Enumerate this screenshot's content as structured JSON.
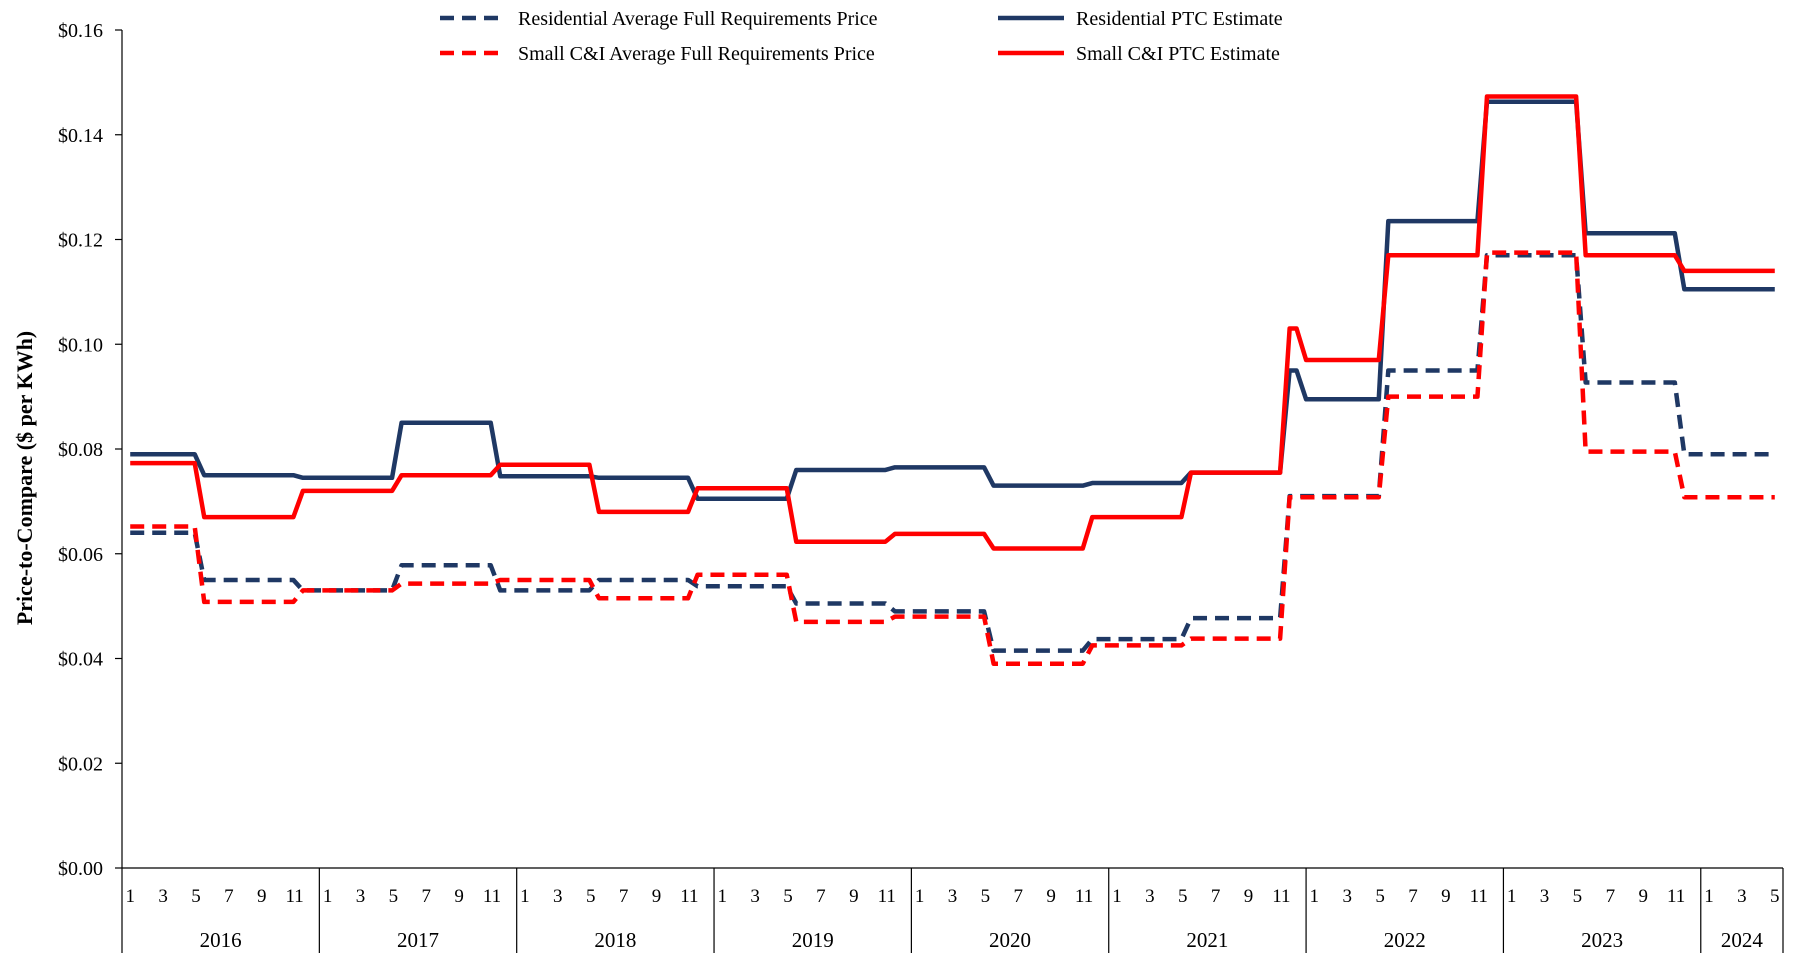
{
  "chart_data": {
    "type": "line",
    "title": "",
    "xlabel": "",
    "ylabel": "Price-to-Compare ($ per KWh)",
    "ylim": [
      0,
      0.16
    ],
    "yticks": [
      "$0.00",
      "$0.02",
      "$0.04",
      "$0.06",
      "$0.08",
      "$0.10",
      "$0.12",
      "$0.14",
      "$0.16"
    ],
    "grid": false,
    "legend_position": "top",
    "x_start": "2016-01",
    "x_end": "2024-05",
    "month_ticks": [
      "1",
      "3",
      "5",
      "7",
      "9",
      "11"
    ],
    "last_year_month_ticks": [
      "1",
      "3",
      "5"
    ],
    "years": [
      "2016",
      "2017",
      "2018",
      "2019",
      "2020",
      "2021",
      "2022",
      "2023",
      "2024"
    ],
    "series": [
      {
        "name": "Residential Average Full Requirements Price",
        "color": "#1f3864",
        "style": "dashed",
        "steps": [
          {
            "from": "2016-01",
            "to": "2016-05",
            "value": 0.064
          },
          {
            "from": "2016-06",
            "to": "2016-11",
            "value": 0.055
          },
          {
            "from": "2016-12",
            "to": "2017-05",
            "value": 0.053
          },
          {
            "from": "2017-06",
            "to": "2017-11",
            "value": 0.0578
          },
          {
            "from": "2017-12",
            "to": "2018-05",
            "value": 0.053
          },
          {
            "from": "2018-06",
            "to": "2018-11",
            "value": 0.055
          },
          {
            "from": "2018-12",
            "to": "2019-05",
            "value": 0.0538
          },
          {
            "from": "2019-06",
            "to": "2019-11",
            "value": 0.0505
          },
          {
            "from": "2019-12",
            "to": "2020-05",
            "value": 0.049
          },
          {
            "from": "2020-06",
            "to": "2020-11",
            "value": 0.0415
          },
          {
            "from": "2020-12",
            "to": "2021-05",
            "value": 0.0437
          },
          {
            "from": "2021-06",
            "to": "2021-11",
            "value": 0.0477
          },
          {
            "from": "2021-12",
            "to": "2022-05",
            "value": 0.071
          },
          {
            "from": "2022-06",
            "to": "2022-11",
            "value": 0.095
          },
          {
            "from": "2022-12",
            "to": "2023-05",
            "value": 0.117
          },
          {
            "from": "2023-06",
            "to": "2023-11",
            "value": 0.0927
          },
          {
            "from": "2023-12",
            "to": "2024-05",
            "value": 0.079
          }
        ]
      },
      {
        "name": "Residential PTC Estimate",
        "color": "#1f3864",
        "style": "solid",
        "steps": [
          {
            "from": "2016-01",
            "to": "2016-05",
            "value": 0.079
          },
          {
            "from": "2016-06",
            "to": "2016-11",
            "value": 0.075
          },
          {
            "from": "2016-12",
            "to": "2017-05",
            "value": 0.0745
          },
          {
            "from": "2017-06",
            "to": "2017-11",
            "value": 0.085
          },
          {
            "from": "2017-12",
            "to": "2018-05",
            "value": 0.0748
          },
          {
            "from": "2018-06",
            "to": "2018-11",
            "value": 0.0745
          },
          {
            "from": "2018-12",
            "to": "2019-05",
            "value": 0.0705
          },
          {
            "from": "2019-06",
            "to": "2019-11",
            "value": 0.076
          },
          {
            "from": "2019-12",
            "to": "2020-05",
            "value": 0.0765
          },
          {
            "from": "2020-06",
            "to": "2020-11",
            "value": 0.073
          },
          {
            "from": "2020-12",
            "to": "2021-05",
            "value": 0.0735
          },
          {
            "from": "2021-06",
            "to": "2021-11",
            "value": 0.0755
          },
          {
            "from": "2021-12",
            "to": "2021-12",
            "value": 0.095
          },
          {
            "from": "2022-01",
            "to": "2022-05",
            "value": 0.0895
          },
          {
            "from": "2022-06",
            "to": "2022-11",
            "value": 0.1235
          },
          {
            "from": "2022-12",
            "to": "2023-05",
            "value": 0.1463
          },
          {
            "from": "2023-06",
            "to": "2023-11",
            "value": 0.1212
          },
          {
            "from": "2023-12",
            "to": "2024-05",
            "value": 0.1105
          }
        ]
      },
      {
        "name": "Small C&I Average Full Requirements Price",
        "color": "#ff0000",
        "style": "dashed",
        "steps": [
          {
            "from": "2016-01",
            "to": "2016-05",
            "value": 0.0652
          },
          {
            "from": "2016-06",
            "to": "2016-11",
            "value": 0.0508
          },
          {
            "from": "2016-12",
            "to": "2017-05",
            "value": 0.053
          },
          {
            "from": "2017-06",
            "to": "2017-11",
            "value": 0.0543
          },
          {
            "from": "2017-12",
            "to": "2018-05",
            "value": 0.055
          },
          {
            "from": "2018-06",
            "to": "2018-11",
            "value": 0.0515
          },
          {
            "from": "2018-12",
            "to": "2019-05",
            "value": 0.056
          },
          {
            "from": "2019-06",
            "to": "2019-11",
            "value": 0.047
          },
          {
            "from": "2019-12",
            "to": "2020-05",
            "value": 0.048
          },
          {
            "from": "2020-06",
            "to": "2020-11",
            "value": 0.039
          },
          {
            "from": "2020-12",
            "to": "2021-05",
            "value": 0.0425
          },
          {
            "from": "2021-06",
            "to": "2021-11",
            "value": 0.0438
          },
          {
            "from": "2021-12",
            "to": "2022-05",
            "value": 0.0708
          },
          {
            "from": "2022-06",
            "to": "2022-11",
            "value": 0.09
          },
          {
            "from": "2022-12",
            "to": "2023-05",
            "value": 0.1175
          },
          {
            "from": "2023-06",
            "to": "2023-11",
            "value": 0.0795
          },
          {
            "from": "2023-12",
            "to": "2024-05",
            "value": 0.0708
          }
        ]
      },
      {
        "name": "Small C&I PTC Estimate",
        "color": "#ff0000",
        "style": "solid",
        "steps": [
          {
            "from": "2016-01",
            "to": "2016-05",
            "value": 0.0773
          },
          {
            "from": "2016-06",
            "to": "2016-11",
            "value": 0.067
          },
          {
            "from": "2016-12",
            "to": "2017-05",
            "value": 0.072
          },
          {
            "from": "2017-06",
            "to": "2017-11",
            "value": 0.075
          },
          {
            "from": "2017-12",
            "to": "2018-05",
            "value": 0.077
          },
          {
            "from": "2018-06",
            "to": "2018-11",
            "value": 0.068
          },
          {
            "from": "2018-12",
            "to": "2019-05",
            "value": 0.0725
          },
          {
            "from": "2019-06",
            "to": "2019-11",
            "value": 0.0623
          },
          {
            "from": "2019-12",
            "to": "2020-05",
            "value": 0.0638
          },
          {
            "from": "2020-06",
            "to": "2020-11",
            "value": 0.061
          },
          {
            "from": "2020-12",
            "to": "2021-05",
            "value": 0.067
          },
          {
            "from": "2021-06",
            "to": "2021-11",
            "value": 0.0755
          },
          {
            "from": "2021-12",
            "to": "2021-12",
            "value": 0.103
          },
          {
            "from": "2022-01",
            "to": "2022-05",
            "value": 0.097
          },
          {
            "from": "2022-06",
            "to": "2022-11",
            "value": 0.117
          },
          {
            "from": "2022-12",
            "to": "2023-05",
            "value": 0.1473
          },
          {
            "from": "2023-06",
            "to": "2023-11",
            "value": 0.117
          },
          {
            "from": "2023-12",
            "to": "2024-05",
            "value": 0.114
          }
        ]
      }
    ]
  }
}
